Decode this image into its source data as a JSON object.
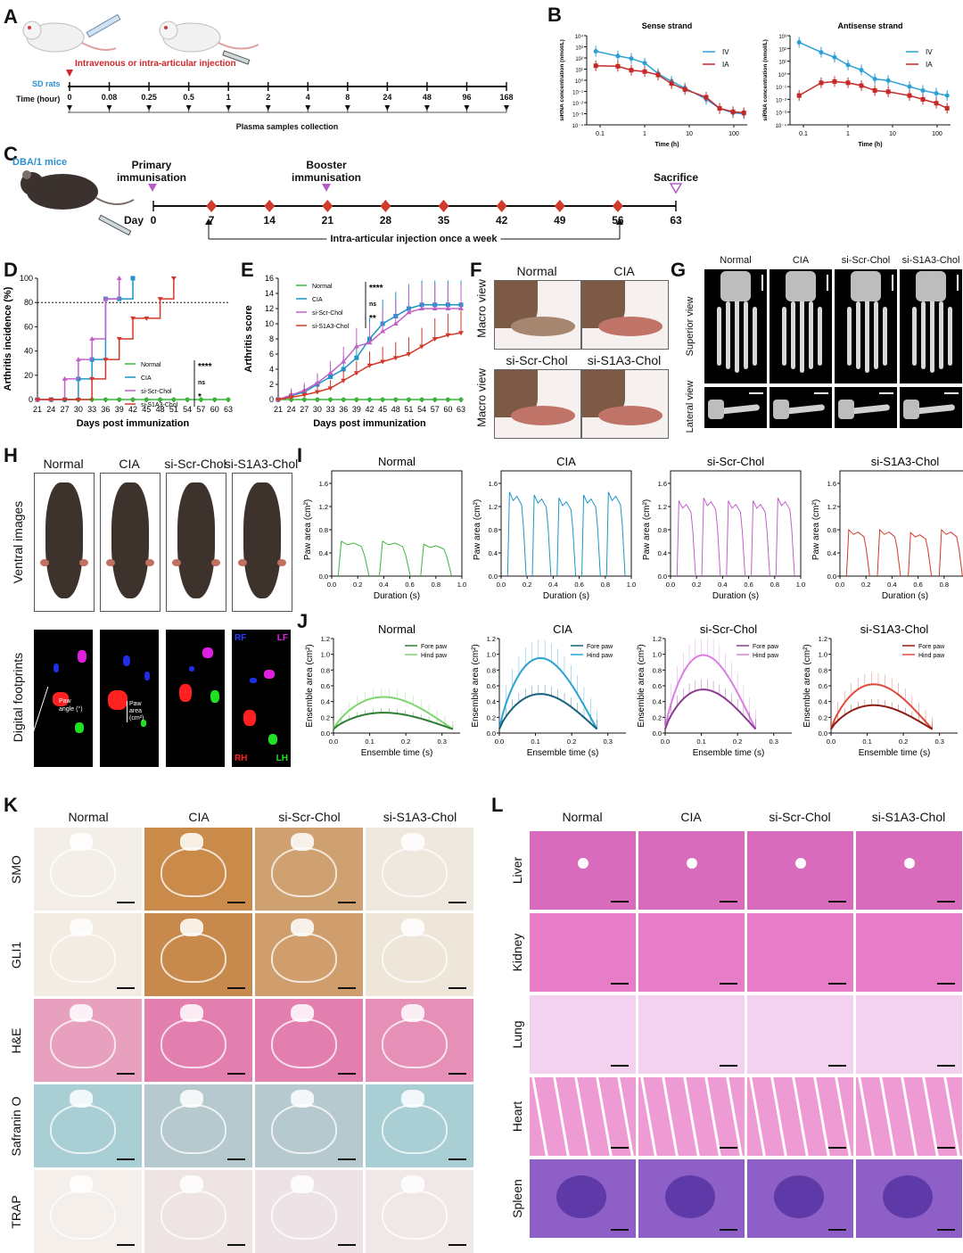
{
  "panels": {
    "A": "A",
    "B": "B",
    "C": "C",
    "D": "D",
    "E": "E",
    "F": "F",
    "G": "G",
    "H": "H",
    "I": "I",
    "J": "J",
    "K": "K",
    "L": "L"
  },
  "panelA": {
    "injection": "Intravenous or intra-articular injection",
    "rats": "SD rats",
    "time_label": "Time (hour)",
    "ticks": [
      "0",
      "0.08",
      "0.25",
      "0.5",
      "1",
      "2",
      "4",
      "8",
      "24",
      "48",
      "96",
      "168"
    ],
    "collection": "Plasma samples collection",
    "colors": {
      "injection": "#d0262c",
      "rats": "#2a8fd0"
    }
  },
  "panelB": {
    "ylabel": "siRNA concentration (nmol/L)",
    "xlabel": "Time (h)",
    "legend": [
      "IV",
      "IA"
    ],
    "colors": {
      "IV": "#2b9fd6",
      "IA": "#c62828"
    },
    "xticks": [
      "0.1",
      "1",
      "10",
      "100"
    ],
    "yticks_left": [
      "10⁴",
      "10³",
      "10²",
      "10¹",
      "10⁰",
      "10⁻¹",
      "10⁻²",
      "10⁻³",
      "10⁻⁴"
    ],
    "yticks_right": [
      "10³",
      "10²",
      "10¹",
      "10⁰",
      "10⁻¹",
      "10⁻²",
      "10⁻³",
      "10⁻⁴"
    ]
  },
  "panelC": {
    "mice": "DBA/1 mice",
    "primary": "Primary\nimmunisation",
    "booster": "Booster\nimmunisation",
    "sacrifice": "Sacrifice",
    "day_label": "Day",
    "days": [
      "0",
      "7",
      "14",
      "21",
      "28",
      "35",
      "42",
      "49",
      "56",
      "63"
    ],
    "injection": "Intra-articular injection once a week"
  },
  "panelF": {
    "labels": [
      "Normal",
      "CIA",
      "si-Scr-Chol",
      "si-S1A3-Chol"
    ],
    "side": "Macro view"
  },
  "panelG": {
    "labels": [
      "Normal",
      "CIA",
      "si-Scr-Chol",
      "si-S1A3-Chol"
    ],
    "superior": "Superior view",
    "lateral": "Lateral view"
  },
  "panelH": {
    "labels": [
      "Normal",
      "CIA",
      "si-Scr-Chol",
      "si-S1A3-Chol"
    ],
    "ventral": "Ventral images",
    "footprints": "Digital footprints",
    "paw_angle": "Paw\nangle (°)",
    "paw_area": "Paw\narea\n(cm²)",
    "rf": "RF",
    "lf": "LF",
    "rh": "RH",
    "lh": "LH"
  },
  "panelK": {
    "cols": [
      "Normal",
      "CIA",
      "si-Scr-Chol",
      "si-S1A3-Chol"
    ],
    "rows": [
      "SMO",
      "GLI1",
      "H&E",
      "Safranin O",
      "TRAP"
    ]
  },
  "panelL": {
    "cols": [
      "Normal",
      "CIA",
      "si-Scr-Chol",
      "si-S1A3-Chol"
    ],
    "rows": [
      "Liver",
      "Kidney",
      "Lung",
      "Heart",
      "Spleen"
    ]
  },
  "chart_data": [
    {
      "id": "B-sense",
      "type": "line",
      "title": "Sense strand",
      "xlabel": "Time (h)",
      "ylabel": "siRNA concentration (nmol/L)",
      "xscale": "log",
      "yscale": "log",
      "x": [
        0.08,
        0.25,
        0.5,
        1,
        2,
        4,
        8,
        24,
        48,
        96,
        168
      ],
      "series": [
        {
          "name": "IV",
          "values": [
            400,
            150,
            90,
            35,
            4,
            0.8,
            0.2,
            0.02,
            0.003,
            0.0012,
            0.001
          ]
        },
        {
          "name": "IA",
          "values": [
            20,
            18,
            8,
            6,
            3,
            0.5,
            0.15,
            0.03,
            0.003,
            0.0015,
            0.0012
          ]
        }
      ]
    },
    {
      "id": "B-antisense",
      "type": "line",
      "title": "Antisense strand",
      "xlabel": "Time (h)",
      "ylabel": "siRNA concentration (nmol/L)",
      "xscale": "log",
      "yscale": "log",
      "x": [
        0.08,
        0.25,
        0.5,
        1,
        2,
        4,
        8,
        24,
        48,
        96,
        168
      ],
      "series": [
        {
          "name": "IV",
          "values": [
            300,
            50,
            20,
            5,
            2,
            0.4,
            0.3,
            0.1,
            0.05,
            0.03,
            0.02
          ]
        },
        {
          "name": "IA",
          "values": [
            0.02,
            0.2,
            0.25,
            0.2,
            0.12,
            0.05,
            0.04,
            0.02,
            0.01,
            0.005,
            0.002
          ]
        }
      ]
    },
    {
      "id": "D",
      "type": "line",
      "xlabel": "Days post immunization",
      "ylabel": "Arthritis incidence (%)",
      "ylim": [
        0,
        100
      ],
      "categories": [
        "21",
        "24",
        "27",
        "30",
        "33",
        "36",
        "39",
        "42",
        "45",
        "48",
        "51",
        "54",
        "57",
        "60",
        "63"
      ],
      "series": [
        {
          "name": "Normal",
          "values": [
            0,
            0,
            0,
            0,
            0,
            0,
            0,
            0,
            0,
            0,
            0,
            0,
            0,
            0,
            0
          ]
        },
        {
          "name": "CIA",
          "values": [
            0,
            0,
            0,
            17,
            33,
            83,
            83,
            100,
            null,
            null,
            null,
            null,
            null,
            null,
            null
          ]
        },
        {
          "name": "si-Scr-Chol",
          "values": [
            0,
            0,
            17,
            33,
            50,
            83,
            100,
            null,
            null,
            null,
            null,
            null,
            null,
            null,
            null
          ]
        },
        {
          "name": "si-S1A3-Chol",
          "values": [
            0,
            0,
            0,
            0,
            17,
            33,
            50,
            67,
            67,
            83,
            100,
            null,
            null,
            null,
            null
          ]
        }
      ],
      "significance": [
        "****",
        "ns",
        "*"
      ]
    },
    {
      "id": "E",
      "type": "line",
      "xlabel": "Days post immunization",
      "ylabel": "Arthritis score",
      "ylim": [
        0,
        16
      ],
      "categories": [
        "21",
        "24",
        "27",
        "30",
        "33",
        "36",
        "39",
        "42",
        "45",
        "48",
        "51",
        "54",
        "57",
        "60",
        "63"
      ],
      "series": [
        {
          "name": "Normal",
          "values": [
            0,
            0,
            0,
            0,
            0,
            0,
            0,
            0,
            0,
            0,
            0,
            0,
            0,
            0,
            0
          ]
        },
        {
          "name": "CIA",
          "values": [
            0,
            0.5,
            1,
            2,
            3,
            4,
            5.5,
            8,
            10,
            11,
            12,
            12.5,
            12.5,
            12.5,
            12.5
          ]
        },
        {
          "name": "si-Scr-Chol",
          "values": [
            0,
            0.6,
            1.2,
            2.2,
            3.5,
            5,
            7,
            7.5,
            9,
            10,
            11.5,
            12,
            12,
            12,
            12
          ]
        },
        {
          "name": "si-S1A3-Chol",
          "values": [
            0,
            0.3,
            0.6,
            1,
            1.5,
            2.5,
            3.5,
            4.5,
            5,
            5.5,
            6,
            7,
            8,
            8.5,
            8.8
          ]
        }
      ],
      "significance": [
        "****",
        "ns",
        "**"
      ]
    },
    {
      "id": "I",
      "type": "line",
      "xlabel": "Duration (s)",
      "ylabel": "Paw area (cm²)",
      "xlim": [
        0,
        1
      ],
      "ylim": [
        0,
        1.6
      ],
      "series": [
        {
          "name": "Normal",
          "values": [
            0.6,
            0.6,
            0.55
          ]
        },
        {
          "name": "CIA",
          "values": [
            1.45,
            1.4,
            1.35,
            1.4,
            1.45
          ]
        },
        {
          "name": "si-Scr-Chol",
          "values": [
            1.3,
            1.35,
            1.3,
            1.3,
            1.35
          ]
        },
        {
          "name": "si-S1A3-Chol",
          "values": [
            0.8,
            0.8,
            0.75,
            0.8
          ]
        }
      ],
      "titles": [
        "Normal",
        "CIA",
        "si-Scr-Chol",
        "si-S1A3-Chol"
      ],
      "colors": [
        "#3cb43c",
        "#1f93c8",
        "#c260c8",
        "#d2392b"
      ]
    },
    {
      "id": "J",
      "type": "line",
      "xlabel": "Ensemble time (s)",
      "ylabel": "Ensemble area (cm²)",
      "ylim": [
        0,
        1.2
      ],
      "titles": [
        "Normal",
        "CIA",
        "si-Scr-Chol",
        "si-S1A3-Chol"
      ],
      "legend": [
        "Fore paw",
        "Hind paw"
      ],
      "series": [
        {
          "name": "Normal",
          "fore_peak": 0.22,
          "hind_peak": 0.43,
          "xmax": 0.33
        },
        {
          "name": "CIA",
          "fore_peak": 0.47,
          "hind_peak": 0.95,
          "xmax": 0.27
        },
        {
          "name": "si-Scr-Chol",
          "fore_peak": 0.53,
          "hind_peak": 0.99,
          "xmax": 0.25
        },
        {
          "name": "si-S1A3-Chol",
          "fore_peak": 0.32,
          "hind_peak": 0.6,
          "xmax": 0.28
        }
      ],
      "xticks_normal": [
        "0.0",
        "0.1",
        "0.2",
        "0.3"
      ],
      "xticks": [
        "0.0",
        "0.1",
        "0.2",
        "0.3"
      ],
      "yticks": [
        "0.0",
        "0.2",
        "0.4",
        "0.6",
        "0.8",
        "1.0",
        "1.2"
      ]
    }
  ]
}
